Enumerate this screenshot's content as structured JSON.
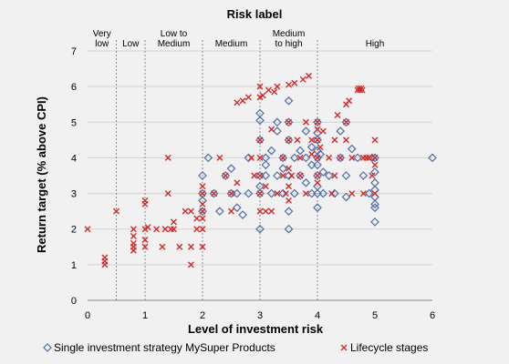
{
  "chart_data": {
    "type": "scatter",
    "title": "Risk label",
    "xlabel": "Level of investment risk",
    "ylabel": "Return target (% above CPI)",
    "xlim": [
      0,
      6
    ],
    "ylim": [
      0,
      7
    ],
    "x_ticks": [
      "0",
      "1",
      "2",
      "3",
      "4",
      "5",
      "6"
    ],
    "y_ticks": [
      "0",
      "1",
      "2",
      "3",
      "4",
      "5",
      "6",
      "7"
    ],
    "grid": "horizontal",
    "legend_position": "bottom",
    "risk_bands": [
      {
        "lines": [
          "Very",
          "low"
        ],
        "x_center": 0.25
      },
      {
        "lines": [
          "Low"
        ],
        "x_center": 0.75
      },
      {
        "lines": [
          "Low to",
          "Medium"
        ],
        "x_center": 1.5
      },
      {
        "lines": [
          "Medium"
        ],
        "x_center": 2.5
      },
      {
        "lines": [
          "Medium",
          "to high"
        ],
        "x_center": 3.5
      },
      {
        "lines": [
          "High"
        ],
        "x_center": 5.0
      }
    ],
    "band_dividers": [
      0.5,
      1.0,
      2.0,
      3.0,
      4.0
    ],
    "series": [
      {
        "name": "Single investment strategy MySuper Products",
        "marker": "diamond",
        "color": "#4f6ea8",
        "points": [
          [
            2.0,
            3.5
          ],
          [
            2.0,
            3.0
          ],
          [
            2.0,
            2.5
          ],
          [
            2.0,
            2.8
          ],
          [
            2.1,
            4.0
          ],
          [
            2.2,
            3.0
          ],
          [
            2.3,
            2.5
          ],
          [
            2.4,
            3.5
          ],
          [
            2.5,
            3.7
          ],
          [
            2.5,
            3.0
          ],
          [
            2.6,
            2.6
          ],
          [
            2.6,
            3.0
          ],
          [
            2.7,
            2.4
          ],
          [
            2.8,
            4.0
          ],
          [
            2.8,
            3.0
          ],
          [
            3.0,
            5.25
          ],
          [
            3.0,
            5.05
          ],
          [
            3.0,
            4.5
          ],
          [
            3.0,
            3.5
          ],
          [
            3.0,
            3.2
          ],
          [
            3.0,
            3.0
          ],
          [
            3.0,
            2.0
          ],
          [
            3.1,
            4.0
          ],
          [
            3.1,
            3.8
          ],
          [
            3.1,
            3.5
          ],
          [
            3.2,
            3.0
          ],
          [
            3.2,
            4.2
          ],
          [
            3.3,
            3.5
          ],
          [
            3.3,
            4.75
          ],
          [
            3.3,
            5.0
          ],
          [
            3.4,
            3.7
          ],
          [
            3.4,
            4.0
          ],
          [
            3.4,
            3.0
          ],
          [
            3.5,
            3.5
          ],
          [
            3.5,
            4.5
          ],
          [
            3.5,
            5.6
          ],
          [
            3.5,
            5.0
          ],
          [
            3.5,
            2.5
          ],
          [
            3.5,
            2.0
          ],
          [
            3.6,
            3.0
          ],
          [
            3.6,
            4.0
          ],
          [
            3.7,
            3.5
          ],
          [
            3.7,
            4.2
          ],
          [
            3.8,
            3.3
          ],
          [
            3.8,
            4.0
          ],
          [
            3.8,
            4.75
          ],
          [
            3.9,
            3.0
          ],
          [
            3.9,
            4.3
          ],
          [
            3.9,
            3.8
          ],
          [
            4.0,
            5.0
          ],
          [
            4.0,
            4.7
          ],
          [
            4.0,
            4.5
          ],
          [
            4.0,
            4.2
          ],
          [
            4.0,
            4.0
          ],
          [
            4.0,
            3.8
          ],
          [
            4.0,
            3.5
          ],
          [
            4.0,
            3.2
          ],
          [
            4.0,
            3.0
          ],
          [
            4.0,
            2.6
          ],
          [
            4.05,
            4.1
          ],
          [
            4.1,
            3.6
          ],
          [
            4.1,
            3.0
          ],
          [
            4.2,
            3.5
          ],
          [
            4.3,
            3.0
          ],
          [
            4.4,
            4.75
          ],
          [
            4.4,
            4.0
          ],
          [
            4.5,
            5.0
          ],
          [
            4.5,
            3.5
          ],
          [
            4.5,
            2.9
          ],
          [
            4.6,
            4.25
          ],
          [
            4.7,
            4.0
          ],
          [
            4.8,
            3.5
          ],
          [
            4.9,
            3.0
          ],
          [
            4.95,
            4.0
          ],
          [
            5.0,
            4.0
          ],
          [
            5.0,
            3.6
          ],
          [
            5.0,
            3.3
          ],
          [
            5.0,
            3.1
          ],
          [
            5.0,
            2.9
          ],
          [
            5.0,
            2.7
          ],
          [
            5.0,
            2.6
          ],
          [
            5.0,
            2.2
          ],
          [
            6.0,
            4.0
          ]
        ]
      },
      {
        "name": "Lifecycle stages",
        "marker": "x",
        "color": "#d12a2a",
        "points": [
          [
            0.0,
            2.0
          ],
          [
            0.3,
            1.2
          ],
          [
            0.3,
            1.1
          ],
          [
            0.3,
            1.0
          ],
          [
            0.5,
            2.5
          ],
          [
            0.8,
            2.0
          ],
          [
            0.8,
            1.8
          ],
          [
            0.8,
            1.6
          ],
          [
            0.8,
            1.5
          ],
          [
            0.8,
            1.4
          ],
          [
            1.0,
            2.8
          ],
          [
            1.0,
            2.7
          ],
          [
            1.0,
            2.0
          ],
          [
            1.0,
            1.7
          ],
          [
            1.0,
            1.5
          ],
          [
            1.05,
            2.05
          ],
          [
            1.2,
            2.0
          ],
          [
            1.3,
            1.5
          ],
          [
            1.35,
            2.0
          ],
          [
            1.4,
            3.0
          ],
          [
            1.4,
            4.0
          ],
          [
            1.45,
            2.0
          ],
          [
            1.5,
            2.2
          ],
          [
            1.5,
            2.0
          ],
          [
            1.6,
            1.5
          ],
          [
            1.7,
            2.5
          ],
          [
            1.8,
            2.5
          ],
          [
            1.8,
            1.5
          ],
          [
            1.8,
            1.0
          ],
          [
            1.9,
            2.3
          ],
          [
            1.9,
            2.0
          ],
          [
            2.0,
            3.2
          ],
          [
            2.0,
            3.0
          ],
          [
            2.0,
            2.7
          ],
          [
            2.0,
            2.5
          ],
          [
            2.0,
            2.3
          ],
          [
            2.0,
            2.0
          ],
          [
            2.0,
            1.5
          ],
          [
            2.2,
            3.0
          ],
          [
            2.3,
            4.0
          ],
          [
            2.4,
            3.5
          ],
          [
            2.5,
            3.0
          ],
          [
            2.5,
            2.5
          ],
          [
            2.6,
            3.3
          ],
          [
            2.6,
            5.55
          ],
          [
            2.7,
            5.6
          ],
          [
            2.8,
            5.7
          ],
          [
            2.85,
            4.0
          ],
          [
            2.9,
            3.5
          ],
          [
            3.0,
            6.0
          ],
          [
            3.0,
            5.7
          ],
          [
            3.0,
            4.5
          ],
          [
            3.0,
            4.0
          ],
          [
            3.0,
            3.5
          ],
          [
            3.0,
            3.0
          ],
          [
            3.0,
            2.5
          ],
          [
            3.05,
            5.75
          ],
          [
            3.1,
            3.2
          ],
          [
            3.1,
            2.5
          ],
          [
            3.15,
            5.9
          ],
          [
            3.2,
            4.8
          ],
          [
            3.2,
            2.5
          ],
          [
            3.25,
            5.85
          ],
          [
            3.3,
            6.0
          ],
          [
            3.3,
            3.0
          ],
          [
            3.4,
            4.0
          ],
          [
            3.4,
            3.5
          ],
          [
            3.45,
            3.0
          ],
          [
            3.5,
            6.05
          ],
          [
            3.5,
            5.0
          ],
          [
            3.5,
            4.5
          ],
          [
            3.5,
            3.7
          ],
          [
            3.5,
            3.2
          ],
          [
            3.5,
            2.8
          ],
          [
            3.55,
            3.5
          ],
          [
            3.6,
            6.1
          ],
          [
            3.65,
            4.5
          ],
          [
            3.7,
            4.0
          ],
          [
            3.7,
            3.5
          ],
          [
            3.75,
            6.2
          ],
          [
            3.8,
            5.0
          ],
          [
            3.8,
            3.0
          ],
          [
            3.85,
            6.3
          ],
          [
            3.9,
            4.5
          ],
          [
            3.9,
            4.1
          ],
          [
            4.0,
            5.0
          ],
          [
            4.0,
            4.8
          ],
          [
            4.0,
            4.5
          ],
          [
            4.0,
            4.0
          ],
          [
            4.0,
            3.5
          ],
          [
            4.0,
            3.3
          ],
          [
            4.05,
            4.3
          ],
          [
            4.1,
            4.75
          ],
          [
            4.2,
            4.0
          ],
          [
            4.25,
            3.0
          ],
          [
            4.3,
            4.5
          ],
          [
            4.3,
            3.5
          ],
          [
            4.35,
            5.2
          ],
          [
            4.4,
            4.0
          ],
          [
            4.5,
            5.5
          ],
          [
            4.5,
            5.0
          ],
          [
            4.5,
            4.5
          ],
          [
            4.55,
            5.6
          ],
          [
            4.6,
            3.0
          ],
          [
            4.6,
            4.0
          ],
          [
            4.7,
            5.9
          ],
          [
            4.72,
            5.95
          ],
          [
            4.74,
            5.9
          ],
          [
            4.76,
            5.95
          ],
          [
            4.78,
            5.9
          ],
          [
            4.8,
            4.0
          ],
          [
            4.8,
            3.0
          ],
          [
            4.85,
            4.0
          ],
          [
            4.9,
            4.0
          ],
          [
            4.95,
            3.5
          ],
          [
            5.0,
            4.5
          ],
          [
            5.0,
            4.0
          ],
          [
            5.0,
            3.8
          ],
          [
            5.0,
            3.0
          ]
        ]
      }
    ]
  }
}
